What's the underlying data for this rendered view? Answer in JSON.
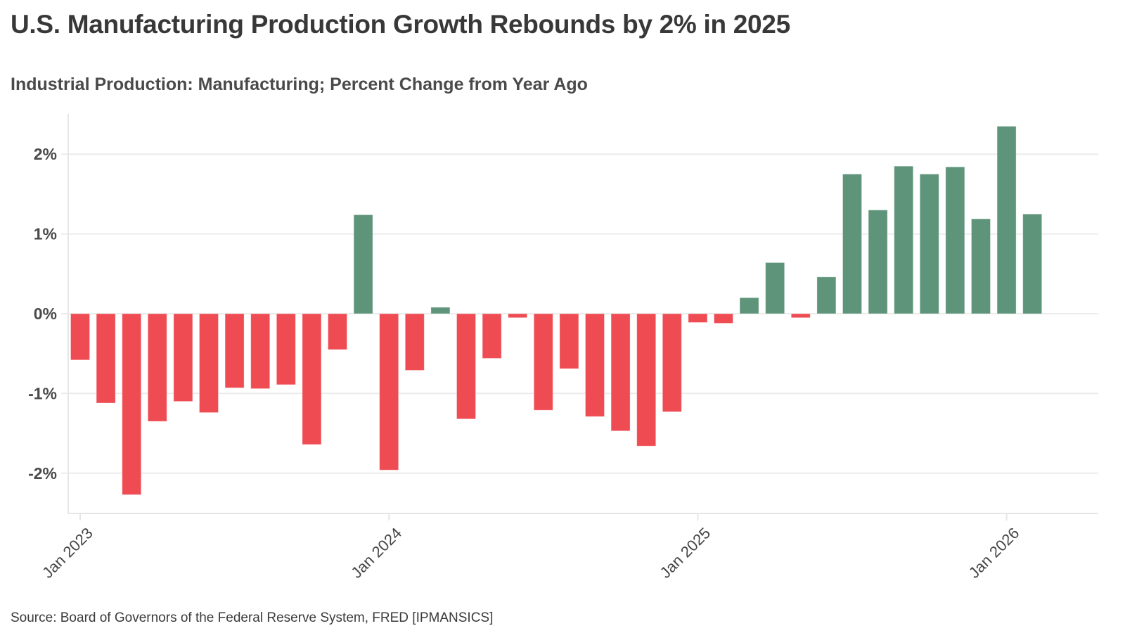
{
  "header": {
    "title": "U.S. Manufacturing Production Growth Rebounds by 2% in 2025",
    "subtitle": "Industrial Production: Manufacturing; Percent Change from Year Ago"
  },
  "footer": {
    "source": "Source: Board of Governors of the Federal Reserve System, FRED [IPMANSICS]"
  },
  "colors": {
    "positive": "#5e9479",
    "negative": "#ef4b53",
    "grid": "#ececec",
    "axis": "#e6e6e6"
  },
  "chart_data": {
    "type": "bar",
    "title": "U.S. Manufacturing Production Growth Rebounds by 2% in 2025",
    "subtitle": "Industrial Production: Manufacturing; Percent Change from Year Ago",
    "xlabel": "",
    "ylabel": "",
    "ylim": [
      -2.5,
      2.5
    ],
    "grid": true,
    "legend": "none",
    "y_ticks": [
      {
        "value": 2,
        "label": "2%"
      },
      {
        "value": 1,
        "label": "1%"
      },
      {
        "value": 0,
        "label": "0%"
      },
      {
        "value": -1,
        "label": "-1%"
      },
      {
        "value": -2,
        "label": "-2%"
      }
    ],
    "x_ticks": [
      {
        "index": 0,
        "label": "Jan 2023"
      },
      {
        "index": 12,
        "label": "Jan 2024"
      },
      {
        "index": 24,
        "label": "Jan 2025"
      },
      {
        "index": 36,
        "label": "Jan 2026"
      }
    ],
    "categories": [
      "Jan 2023",
      "Feb 2023",
      "Mar 2023",
      "Apr 2023",
      "May 2023",
      "Jun 2023",
      "Jul 2023",
      "Aug 2023",
      "Sep 2023",
      "Oct 2023",
      "Nov 2023",
      "Dec 2023",
      "Jan 2024",
      "Feb 2024",
      "Mar 2024",
      "Apr 2024",
      "May 2024",
      "Jun 2024",
      "Jul 2024",
      "Aug 2024",
      "Sep 2024",
      "Oct 2024",
      "Nov 2024",
      "Dec 2024",
      "Jan 2025",
      "Feb 2025",
      "Mar 2025",
      "Apr 2025",
      "May 2025",
      "Jun 2025",
      "Jul 2025",
      "Aug 2025",
      "Sep 2025",
      "Oct 2025",
      "Nov 2025",
      "Dec 2025",
      "Jan 2026",
      "Feb 2026"
    ],
    "values": [
      -0.58,
      -1.12,
      -2.27,
      -1.35,
      -1.1,
      -1.24,
      -0.93,
      -0.94,
      -0.89,
      -1.64,
      -0.45,
      1.24,
      -1.96,
      -0.71,
      0.08,
      -1.32,
      -0.56,
      -0.05,
      -1.21,
      -0.69,
      -1.29,
      -1.47,
      -1.66,
      -1.23,
      -0.11,
      -0.12,
      0.2,
      0.64,
      -0.05,
      0.46,
      1.75,
      1.3,
      1.85,
      1.75,
      1.84,
      1.19,
      2.35,
      1.25
    ]
  }
}
